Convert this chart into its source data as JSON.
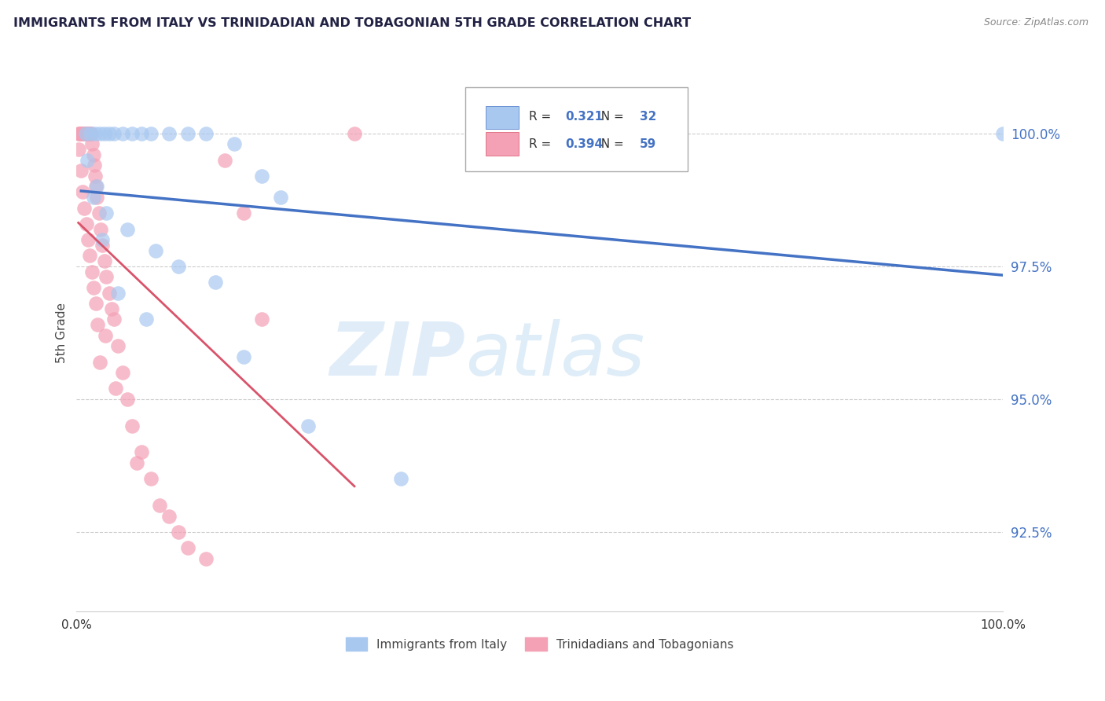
{
  "title": "IMMIGRANTS FROM ITALY VS TRINIDADIAN AND TOBAGONIAN 5TH GRADE CORRELATION CHART",
  "source": "Source: ZipAtlas.com",
  "ylabel": "5th Grade",
  "xlim": [
    0.0,
    100.0
  ],
  "ylim": [
    91.0,
    101.5
  ],
  "yticks": [
    92.5,
    95.0,
    97.5,
    100.0
  ],
  "ytick_labels": [
    "92.5%",
    "95.0%",
    "97.5%",
    "100.0%"
  ],
  "xtick_labels": [
    "0.0%",
    "100.0%"
  ],
  "legend_r_blue": "0.321",
  "legend_n_blue": "32",
  "legend_r_pink": "0.394",
  "legend_n_pink": "59",
  "legend_label_blue": "Immigrants from Italy",
  "legend_label_pink": "Trinidadians and Tobagonians",
  "watermark_zip": "ZIP",
  "watermark_atlas": "atlas",
  "blue_color": "#a8c8f0",
  "pink_color": "#f4a0b5",
  "blue_line_color": "#4472c4",
  "pink_line_color": "#d9536a",
  "blue_scatter_x": [
    1.0,
    1.5,
    2.0,
    2.5,
    3.0,
    3.5,
    4.0,
    5.0,
    6.0,
    7.0,
    8.0,
    10.0,
    12.0,
    14.0,
    17.0,
    20.0,
    22.0,
    1.2,
    2.2,
    3.2,
    5.5,
    8.5,
    11.0,
    15.0,
    1.8,
    2.8,
    4.5,
    7.5,
    18.0,
    25.0,
    35.0,
    100.0
  ],
  "blue_scatter_y": [
    100.0,
    100.0,
    100.0,
    100.0,
    100.0,
    100.0,
    100.0,
    100.0,
    100.0,
    100.0,
    100.0,
    100.0,
    100.0,
    100.0,
    99.8,
    99.2,
    98.8,
    99.5,
    99.0,
    98.5,
    98.2,
    97.8,
    97.5,
    97.2,
    98.8,
    98.0,
    97.0,
    96.5,
    95.8,
    94.5,
    93.5,
    100.0
  ],
  "pink_scatter_x": [
    0.2,
    0.3,
    0.4,
    0.5,
    0.6,
    0.7,
    0.8,
    0.9,
    1.0,
    1.1,
    1.2,
    1.3,
    1.4,
    1.5,
    1.6,
    1.7,
    1.8,
    1.9,
    2.0,
    2.1,
    2.2,
    2.4,
    2.6,
    2.8,
    3.0,
    3.2,
    3.5,
    3.8,
    4.0,
    4.5,
    5.0,
    5.5,
    6.0,
    7.0,
    8.0,
    9.0,
    10.0,
    11.0,
    12.0,
    14.0,
    16.0,
    18.0,
    20.0,
    0.25,
    0.45,
    0.65,
    0.85,
    1.05,
    1.25,
    1.45,
    1.65,
    1.85,
    2.05,
    2.25,
    2.55,
    3.1,
    4.2,
    6.5,
    30.0
  ],
  "pink_scatter_y": [
    100.0,
    100.0,
    100.0,
    100.0,
    100.0,
    100.0,
    100.0,
    100.0,
    100.0,
    100.0,
    100.0,
    100.0,
    100.0,
    100.0,
    100.0,
    99.8,
    99.6,
    99.4,
    99.2,
    99.0,
    98.8,
    98.5,
    98.2,
    97.9,
    97.6,
    97.3,
    97.0,
    96.7,
    96.5,
    96.0,
    95.5,
    95.0,
    94.5,
    94.0,
    93.5,
    93.0,
    92.8,
    92.5,
    92.2,
    92.0,
    99.5,
    98.5,
    96.5,
    99.7,
    99.3,
    98.9,
    98.6,
    98.3,
    98.0,
    97.7,
    97.4,
    97.1,
    96.8,
    96.4,
    95.7,
    96.2,
    95.2,
    93.8,
    100.0
  ]
}
